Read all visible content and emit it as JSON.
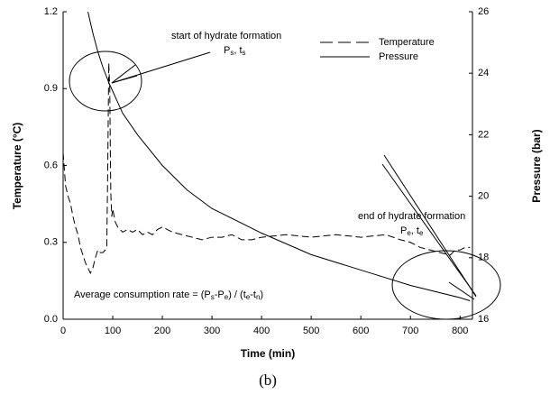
{
  "chart_data": {
    "type": "line",
    "x_label": "Time (min)",
    "y_label": "Temperature (°C)",
    "y2_label": "Pressure (bar)",
    "caption": "(b)",
    "xlim": [
      0,
      825
    ],
    "xticks": [
      0,
      100,
      200,
      300,
      400,
      500,
      600,
      700,
      800
    ],
    "ylim": [
      0,
      1.2
    ],
    "yticks": [
      {
        "value": 0,
        "label": "0.0"
      },
      0.3,
      0.6,
      0.9,
      1.2
    ],
    "y2lim": [
      16,
      26
    ],
    "y2ticks": [
      16,
      18,
      20,
      22,
      24,
      26
    ],
    "legend": "upper right",
    "series": [
      {
        "name": "Temperature",
        "color": "#000000",
        "line_style": "dashed",
        "x": [
          0,
          5,
          10,
          15,
          20,
          25,
          30,
          35,
          40,
          45,
          50,
          55,
          60,
          65,
          70,
          75,
          80,
          85,
          88,
          90,
          92,
          94,
          96,
          98,
          100,
          105,
          110,
          120,
          130,
          140,
          150,
          160,
          170,
          180,
          190,
          200,
          220,
          240,
          260,
          280,
          300,
          320,
          340,
          360,
          380,
          400,
          450,
          500,
          550,
          600,
          650,
          680,
          700,
          720,
          740,
          760,
          780,
          790,
          800,
          810,
          820
        ],
        "values": [
          0.65,
          0.52,
          0.48,
          0.45,
          0.4,
          0.36,
          0.33,
          0.28,
          0.25,
          0.22,
          0.2,
          0.18,
          0.2,
          0.24,
          0.27,
          0.26,
          0.26,
          0.27,
          0.28,
          0.6,
          1.0,
          0.9,
          0.5,
          0.4,
          0.43,
          0.38,
          0.36,
          0.34,
          0.35,
          0.34,
          0.35,
          0.33,
          0.34,
          0.33,
          0.35,
          0.36,
          0.34,
          0.33,
          0.32,
          0.31,
          0.32,
          0.32,
          0.33,
          0.31,
          0.31,
          0.32,
          0.33,
          0.32,
          0.33,
          0.32,
          0.33,
          0.31,
          0.3,
          0.28,
          0.27,
          0.26,
          0.25,
          0.27,
          0.27,
          0.28,
          0.28
        ]
      },
      {
        "name": "Pressure",
        "color": "#000000",
        "line_style": "solid",
        "axis": "y2",
        "x": [
          50,
          60,
          70,
          80,
          92,
          120,
          150,
          200,
          250,
          300,
          400,
          500,
          600,
          700,
          800,
          820
        ],
        "values": [
          26,
          25.3,
          24.7,
          24.2,
          23.7,
          22.7,
          22.0,
          21.0,
          20.2,
          19.6,
          18.8,
          18.1,
          17.6,
          17.1,
          16.7,
          16.6
        ]
      }
    ],
    "annotations": {
      "start_title": "start of hydrate formation",
      "start_label": [
        "P",
        "s",
        ", t",
        "s"
      ],
      "end_title": "end of hydrate formation",
      "end_label": [
        "P",
        "e",
        ", t",
        "e"
      ],
      "formula": [
        "Average consumption rate = (P",
        "s",
        "-P",
        "e",
        ") / (t",
        "e",
        "-t",
        "n",
        ")"
      ]
    }
  }
}
